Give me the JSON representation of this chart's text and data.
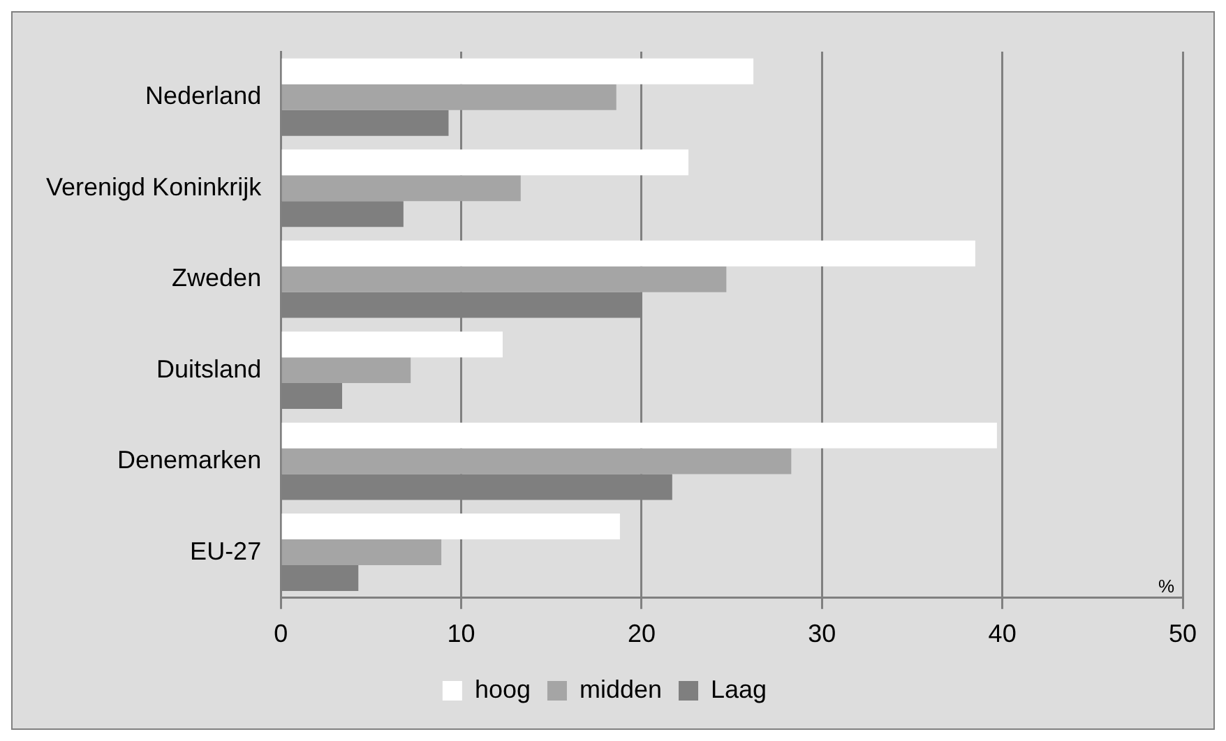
{
  "chart_data": {
    "type": "bar",
    "orientation": "horizontal",
    "xlabel": "%",
    "categories": [
      "Nederland",
      "Verenigd Koninkrijk",
      "Zweden",
      "Duitsland",
      "Denemarken",
      "EU-27"
    ],
    "series": [
      {
        "name": "hoog",
        "color": "#ffffff",
        "values": [
          26.2,
          22.6,
          38.5,
          12.3,
          39.7,
          18.8
        ]
      },
      {
        "name": "midden",
        "color": "#a5a5a5",
        "values": [
          18.6,
          13.3,
          24.7,
          7.2,
          28.3,
          8.9
        ]
      },
      {
        "name": "Laag",
        "color": "#7f7f7f",
        "values": [
          9.3,
          6.8,
          20.0,
          3.4,
          21.7,
          4.3
        ]
      }
    ],
    "xlim": [
      0,
      50
    ],
    "xticks": [
      0,
      10,
      20,
      30,
      40,
      50
    ],
    "grid": "x",
    "legend": "bottom"
  }
}
